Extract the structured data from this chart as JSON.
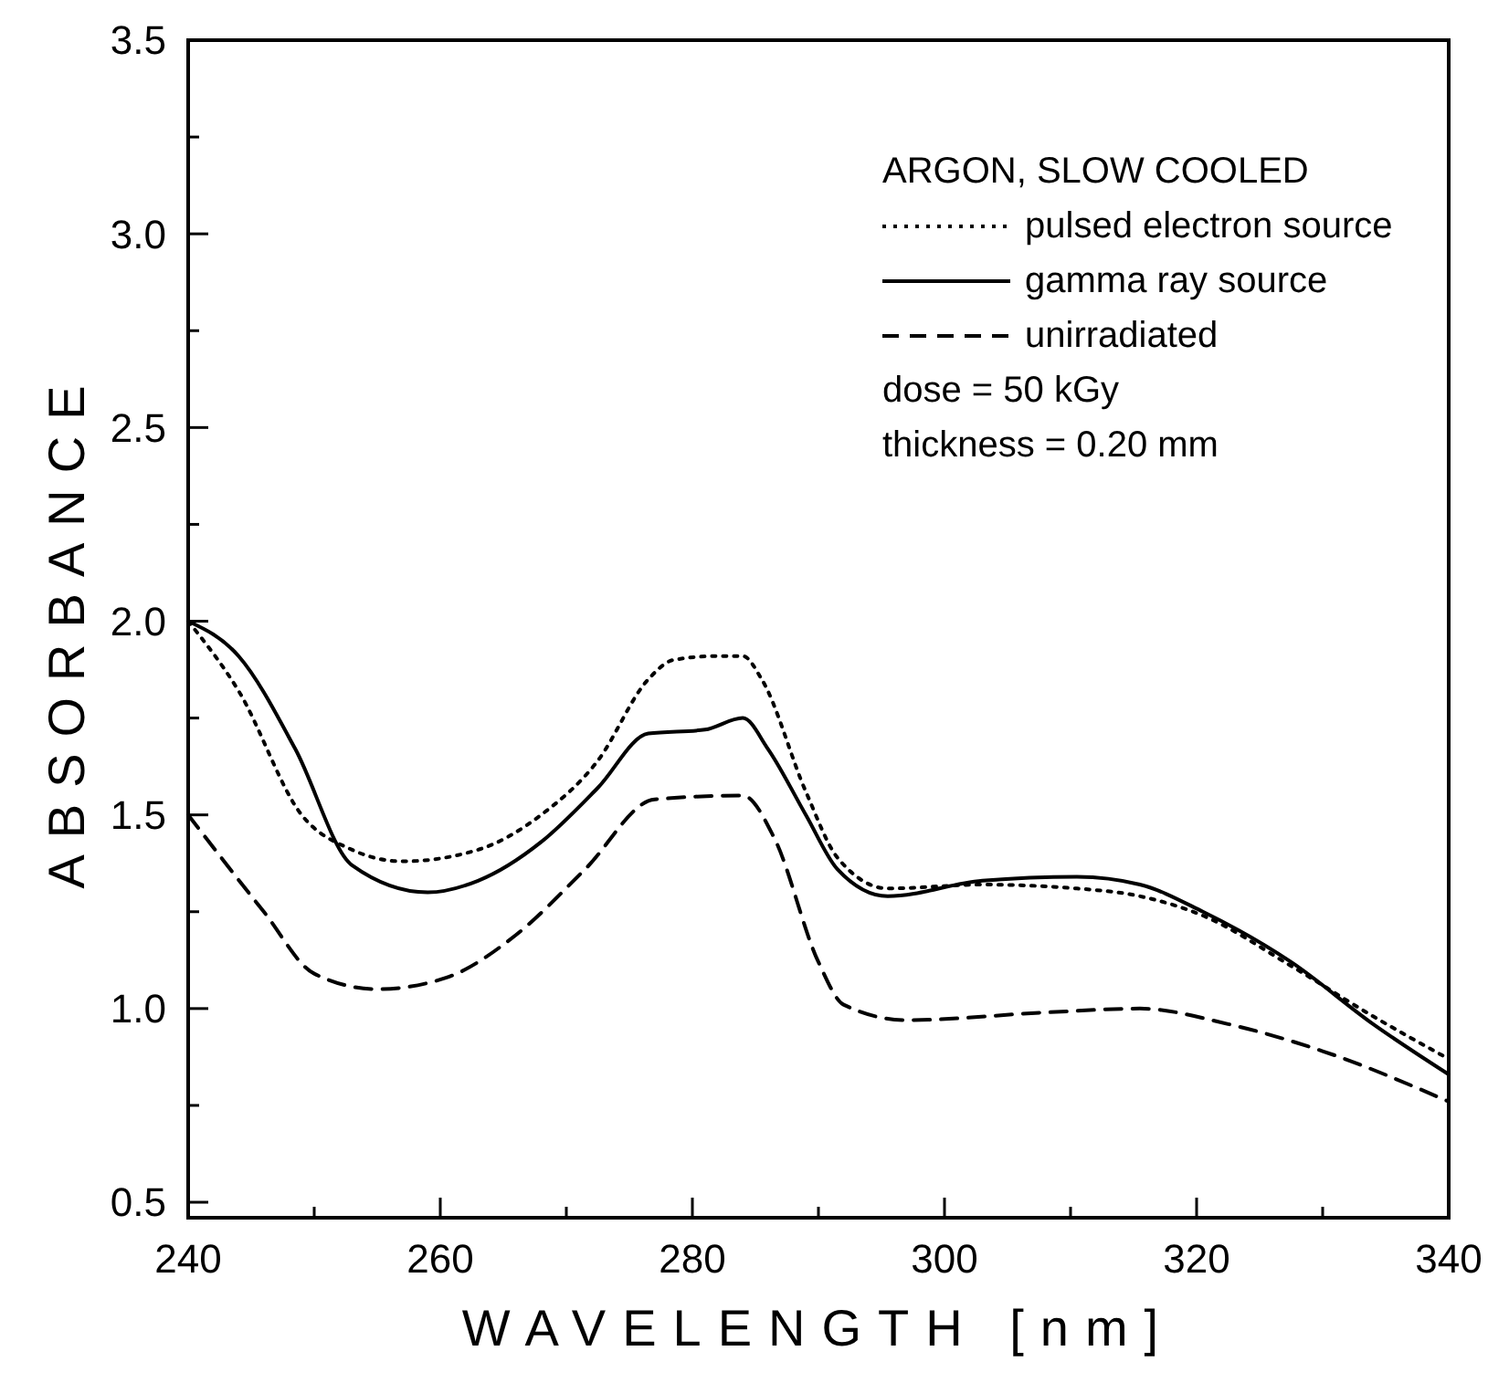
{
  "chart_data": {
    "type": "line",
    "xlabel": "WAVELENGTH [nm]",
    "ylabel": "ABSORBANCE",
    "legend_title": "ARGON, SLOW  COOLED",
    "legend": "top right",
    "grid": false,
    "xlim": [
      240,
      340
    ],
    "ylim": [
      0.46,
      3.5
    ],
    "xticks": [
      240,
      {
        "value": 250,
        "label": null
      },
      260,
      {
        "value": 270,
        "label": null
      },
      280,
      {
        "value": 290,
        "label": null
      },
      300,
      {
        "value": 310,
        "label": null
      },
      320,
      {
        "value": 330,
        "label": null
      },
      340
    ],
    "yticks": [
      {
        "value": 0.5,
        "label": "0.5"
      },
      {
        "value": 0.75,
        "label": null
      },
      {
        "value": 1.0,
        "label": "1.0"
      },
      {
        "value": 1.25,
        "label": null
      },
      {
        "value": 1.5,
        "label": "1.5"
      },
      {
        "value": 1.75,
        "label": null
      },
      {
        "value": 2.0,
        "label": "2.0"
      },
      {
        "value": 2.25,
        "label": null
      },
      {
        "value": 2.5,
        "label": "2.5"
      },
      {
        "value": 2.75,
        "label": null
      },
      {
        "value": 3.0,
        "label": "3.0"
      },
      {
        "value": 3.25,
        "label": null
      },
      {
        "value": 3.5,
        "label": "3.5"
      }
    ],
    "series": [
      {
        "name": "pulsed electron source",
        "color": "#000000",
        "line_style": "dotted",
        "x": [
          240,
          244,
          249,
          253,
          257,
          263,
          268,
          272.5,
          276.5,
          278.5,
          282,
          284,
          285.5,
          289,
          291.5,
          295.5,
          303,
          310.5,
          315.5,
          320.5,
          327.5,
          334,
          340
        ],
        "values": [
          2.0,
          1.82,
          1.5,
          1.41,
          1.38,
          1.41,
          1.5,
          1.64,
          1.85,
          1.9,
          1.91,
          1.91,
          1.85,
          1.56,
          1.39,
          1.31,
          1.32,
          1.31,
          1.29,
          1.24,
          1.11,
          0.98,
          0.87
        ]
      },
      {
        "name": "gamma ray source",
        "color": "#000000",
        "line_style": "solid",
        "x": [
          240,
          244,
          248.5,
          253,
          259,
          263,
          268,
          272.5,
          276.5,
          281,
          284,
          286,
          289,
          291.5,
          295.5,
          303,
          310.5,
          315.5,
          320.5,
          327.5,
          334,
          340
        ],
        "values": [
          2.0,
          1.91,
          1.67,
          1.37,
          1.3,
          1.33,
          1.43,
          1.57,
          1.71,
          1.72,
          1.75,
          1.67,
          1.5,
          1.36,
          1.29,
          1.33,
          1.34,
          1.32,
          1.25,
          1.12,
          0.96,
          0.83
        ]
      },
      {
        "name": "unirradiated",
        "color": "#000000",
        "line_style": "dashed",
        "x": [
          240,
          246,
          250,
          255,
          260.5,
          266,
          271.5,
          277,
          284,
          286.5,
          290,
          292,
          297,
          308,
          315.5,
          322.5,
          330,
          340
        ],
        "values": [
          1.5,
          1.25,
          1.09,
          1.05,
          1.08,
          1.19,
          1.36,
          1.54,
          1.55,
          1.44,
          1.12,
          1.01,
          0.97,
          0.99,
          1.0,
          0.96,
          0.89,
          0.76
        ]
      }
    ],
    "annotations": [
      "dose = 50 kGy",
      "thickness = 0.20 mm"
    ]
  }
}
